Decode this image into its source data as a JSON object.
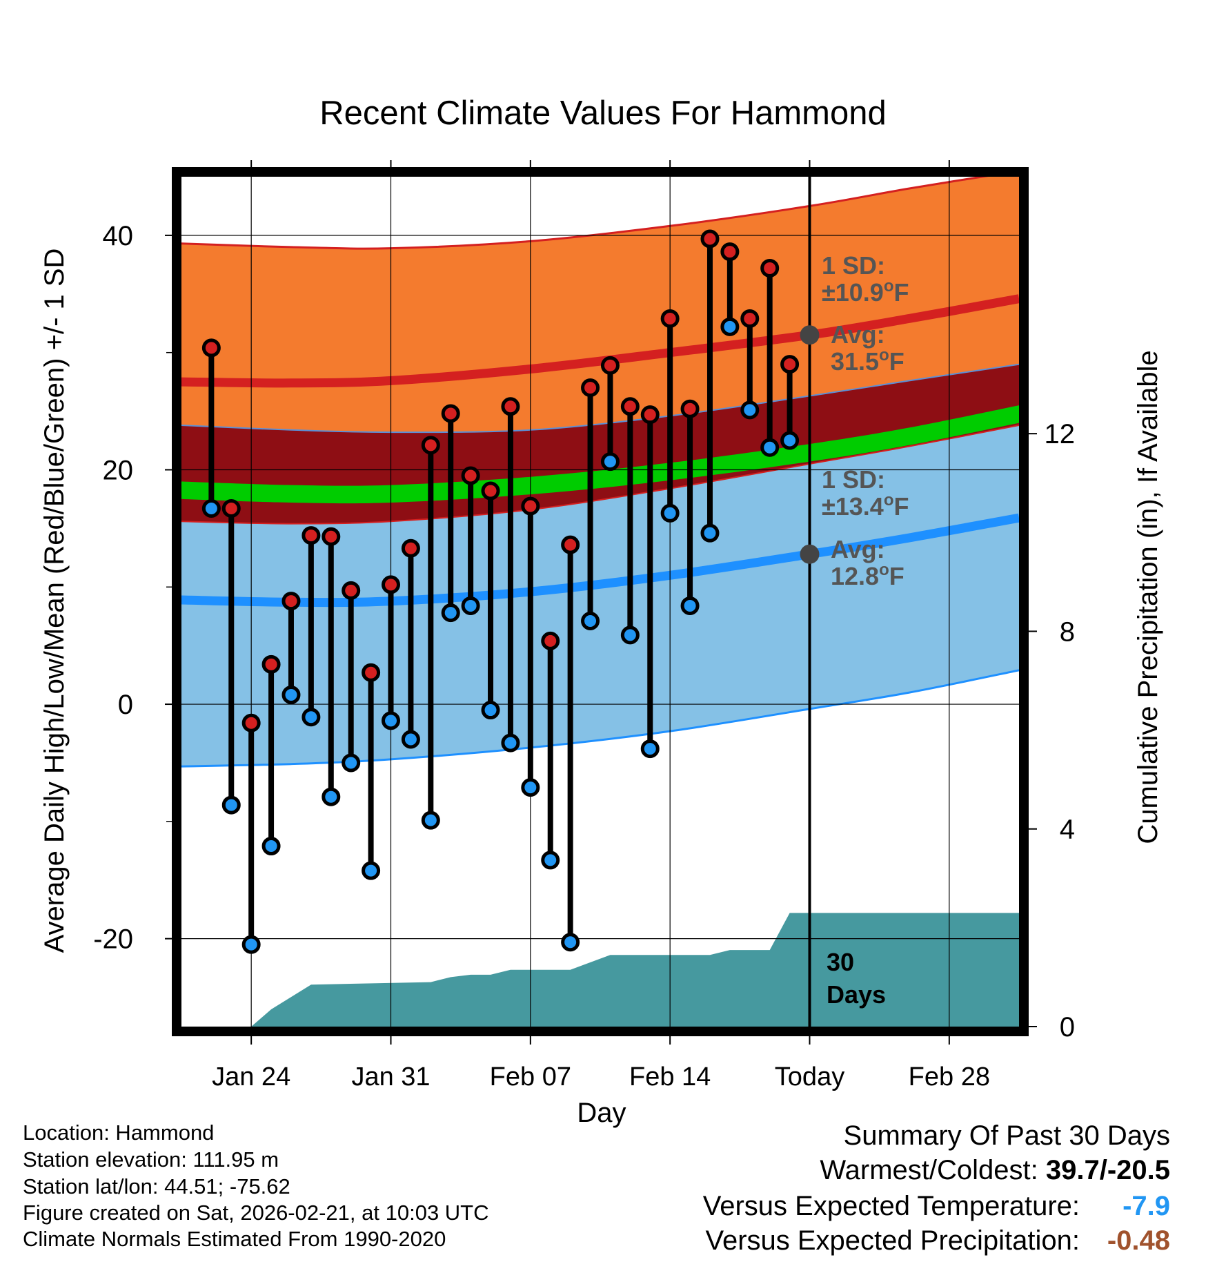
{
  "chart_data": {
    "type": "line",
    "title": "Recent Climate Values For Hammond",
    "xlabel": "Day",
    "ylabel": "Average Daily High/Low/Mean (Red/Blue/Green) +/- 1 SD",
    "y2label": "Cumulative Precipitation (in), If Available",
    "x_range": [
      -3.5,
      38.5
    ],
    "y_range": [
      -27.5,
      45
    ],
    "y2_range": [
      0,
      17.2
    ],
    "x_ticks": [
      {
        "x": 0,
        "label": "Jan 24"
      },
      {
        "x": 7,
        "label": "Jan 31"
      },
      {
        "x": 14,
        "label": "Feb 07"
      },
      {
        "x": 21,
        "label": "Feb 14"
      },
      {
        "x": 28,
        "label": "Today"
      },
      {
        "x": 35,
        "label": "Feb 28"
      }
    ],
    "y_ticks": [
      {
        "y": 40,
        "label": "40"
      },
      {
        "y": 20,
        "label": "20"
      },
      {
        "y": 0,
        "label": "0"
      },
      {
        "y": -20,
        "label": "-20"
      }
    ],
    "y_minor_ticks": [
      30,
      10,
      -10
    ],
    "y2_ticks": [
      {
        "y": 0,
        "label": "0"
      },
      {
        "y": 4,
        "label": "4"
      },
      {
        "y": 8,
        "label": "8"
      },
      {
        "y": 12,
        "label": "12"
      }
    ],
    "normals": {
      "x": [
        -3.5,
        2,
        7,
        14,
        21,
        28,
        33,
        38.5
      ],
      "high_mean": [
        27.5,
        27.4,
        27.6,
        28.6,
        30.0,
        31.5,
        32.9,
        34.6
      ],
      "high_upper": [
        39.3,
        39.0,
        38.9,
        39.5,
        40.8,
        42.5,
        44.0,
        45.5
      ],
      "high_lower": [
        23.8,
        23.4,
        23.2,
        23.4,
        24.6,
        26.3,
        27.6,
        29.0
      ],
      "mean_upper": [
        19.0,
        18.7,
        18.7,
        19.4,
        20.6,
        22.2,
        23.6,
        25.5
      ],
      "mean_lower": [
        17.5,
        17.2,
        17.2,
        17.9,
        19.1,
        20.7,
        22.1,
        24.0
      ],
      "low_mean": [
        8.9,
        8.7,
        8.8,
        9.6,
        11.0,
        12.8,
        14.2,
        15.9
      ],
      "low_upper": [
        15.6,
        15.4,
        15.6,
        16.6,
        18.4,
        20.5,
        22.0,
        23.8
      ],
      "low_lower": [
        -5.3,
        -5.1,
        -4.7,
        -3.7,
        -2.3,
        -0.4,
        1.0,
        2.9
      ]
    },
    "series": [
      {
        "name": "Daily High",
        "color": "#d42020",
        "x": [
          -2,
          -1,
          0,
          1,
          2,
          3,
          4,
          5,
          6,
          7,
          8,
          9,
          10,
          11,
          12,
          13,
          14,
          15,
          16,
          17,
          18,
          19,
          20,
          21,
          22,
          23,
          24,
          25,
          26,
          27
        ],
        "values": [
          30.4,
          16.7,
          -1.6,
          3.4,
          8.8,
          14.4,
          14.3,
          9.7,
          2.7,
          10.2,
          13.3,
          22.1,
          24.8,
          19.5,
          18.2,
          25.4,
          16.9,
          5.4,
          13.6,
          27.0,
          28.9,
          25.4,
          24.7,
          32.9,
          25.2,
          39.7,
          38.6,
          32.9,
          37.2,
          29.0
        ]
      },
      {
        "name": "Daily Low",
        "color": "#2196f3",
        "x": [
          -2,
          -1,
          0,
          1,
          2,
          3,
          4,
          5,
          6,
          7,
          8,
          9,
          10,
          11,
          12,
          13,
          14,
          15,
          16,
          17,
          18,
          19,
          20,
          21,
          22,
          23,
          24,
          25,
          26,
          27
        ],
        "values": [
          16.7,
          -8.6,
          -20.5,
          -12.1,
          0.8,
          -1.1,
          -7.9,
          -5.0,
          -14.2,
          -1.4,
          -3.0,
          -9.9,
          7.8,
          8.4,
          -0.5,
          -3.3,
          -7.1,
          -13.3,
          -20.3,
          7.1,
          20.7,
          5.9,
          -3.8,
          16.3,
          8.4,
          14.6,
          32.2,
          25.1,
          21.9,
          22.5
        ]
      }
    ],
    "precipitation": {
      "name": "Cumulative Precipitation",
      "x": [
        -3.5,
        0,
        1,
        3,
        9,
        10,
        11,
        12,
        13,
        16,
        17,
        18,
        21,
        23,
        24,
        26,
        27,
        28,
        38.5
      ],
      "values": [
        0.0,
        0.0,
        0.35,
        0.85,
        0.9,
        1.0,
        1.05,
        1.05,
        1.15,
        1.15,
        1.3,
        1.45,
        1.45,
        1.45,
        1.55,
        1.55,
        2.3,
        2.3,
        2.3
      ]
    },
    "annotations": {
      "high_sd_title": "1 SD:",
      "high_sd_value": "±10.9",
      "high_avg_title": "Avg:",
      "high_avg_value": "31.5",
      "low_sd_title": "1 SD:",
      "low_sd_value": "±13.4",
      "low_avg_title": "Avg:",
      "low_avg_value": "12.8",
      "degree_unit": "o",
      "temp_unit": "F",
      "period_number": "30",
      "period_unit": "Days"
    },
    "marker_today": {
      "x": 28,
      "high_avg": 31.5,
      "low_avg": 12.8
    },
    "colors": {
      "high_band": "#f47b2e",
      "high_line": "#d42020",
      "mean_band": "#8e0e14",
      "mean_line": "#00cc00",
      "low_band": "#85c1e6",
      "low_line": "#1e90ff",
      "precip": "#46999f",
      "marker": "#444444"
    }
  },
  "footer": {
    "location": "Location: Hammond",
    "elevation": "Station elevation: 111.95 m",
    "latlon": "Station lat/lon: 44.51; -75.62",
    "created": "Figure created on Sat, 2026-02-21, at 10:03 UTC",
    "normals": "Climate Normals Estimated From 1990-2020"
  },
  "summary": {
    "title": "Summary Of Past 30 Days",
    "warmest_label": "Warmest/Coldest:",
    "warmest_value": "39.7/-20.5",
    "temp_label": "Versus Expected Temperature:",
    "temp_value": "-7.9",
    "temp_color": "#2196f3",
    "precip_label": "Versus Expected Precipitation:",
    "precip_value": "-0.48",
    "precip_color": "#a0522d"
  }
}
